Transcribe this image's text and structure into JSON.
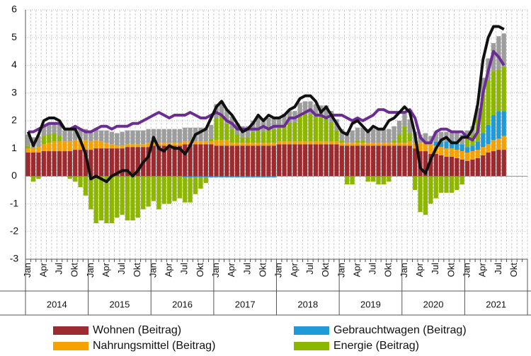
{
  "chart_data": {
    "type": "bar",
    "categories": [
      "Jan",
      null,
      null,
      "Apr",
      null,
      null,
      "Jul",
      null,
      null,
      "Okt",
      null,
      null,
      "Jan",
      null,
      null,
      "Apr",
      null,
      null,
      "Jul",
      null,
      null,
      "Okt",
      null,
      null,
      "Jan",
      null,
      null,
      "Apr",
      null,
      null,
      "Jul",
      null,
      null,
      "Okt",
      null,
      null,
      "Jan",
      null,
      null,
      "Apr",
      null,
      null,
      "Jul",
      null,
      null,
      "Okt",
      null,
      null,
      "Jan",
      null,
      null,
      "Apr",
      null,
      null,
      "Jul",
      null,
      null,
      "Okt",
      null,
      null,
      "Jan",
      null,
      null,
      "Apr",
      null,
      null,
      "Jul",
      null,
      null,
      "Okt",
      null,
      null,
      "Jan",
      null,
      null,
      "Apr",
      null,
      null,
      "Jul",
      null,
      null,
      "Okt",
      null,
      null,
      "Jan",
      null,
      null,
      "Apr",
      null,
      null,
      "Jul",
      null,
      null,
      "Okt",
      null,
      null
    ],
    "years": [
      "2014",
      "2015",
      "2016",
      "2017",
      "2018",
      "2019",
      "2020",
      "2021"
    ],
    "ylim": [
      -3,
      6
    ],
    "yticks": [
      -3,
      -2,
      -1,
      0,
      1,
      2,
      3,
      4,
      5,
      6
    ],
    "grid": true,
    "series": [
      {
        "name": "Wohnen (Beitrag)",
        "type": "bar",
        "color": "#9b2b2f",
        "values": [
          0.85,
          0.85,
          0.85,
          0.9,
          0.9,
          0.9,
          0.9,
          0.9,
          0.9,
          0.95,
          0.95,
          0.95,
          0.95,
          1.0,
          1.0,
          1.0,
          1.0,
          1.0,
          1.0,
          1.05,
          1.05,
          1.05,
          1.05,
          1.05,
          1.1,
          1.1,
          1.1,
          1.1,
          1.1,
          1.1,
          1.15,
          1.15,
          1.15,
          1.15,
          1.15,
          1.15,
          1.1,
          1.1,
          1.1,
          1.1,
          1.1,
          1.1,
          1.1,
          1.1,
          1.1,
          1.1,
          1.1,
          1.1,
          1.15,
          1.15,
          1.15,
          1.15,
          1.15,
          1.15,
          1.15,
          1.15,
          1.15,
          1.15,
          1.15,
          1.15,
          1.1,
          1.1,
          1.1,
          1.1,
          1.1,
          1.1,
          1.1,
          1.1,
          1.1,
          1.1,
          1.1,
          1.1,
          1.1,
          1.1,
          1.0,
          0.9,
          0.9,
          0.8,
          0.8,
          0.75,
          0.7,
          0.7,
          0.65,
          0.6,
          0.55,
          0.6,
          0.65,
          0.75,
          0.85,
          0.9,
          0.95,
          0.95,
          null,
          null,
          null,
          null
        ]
      },
      {
        "name": "Nahrungsmittel (Beitrag)",
        "type": "bar",
        "color": "#f5a200",
        "values": [
          0.15,
          0.15,
          0.2,
          0.25,
          0.3,
          0.35,
          0.35,
          0.35,
          0.35,
          0.35,
          0.35,
          0.35,
          0.3,
          0.3,
          0.25,
          0.2,
          0.15,
          0.1,
          0.1,
          0.1,
          0.1,
          0.1,
          0.1,
          0.15,
          0.1,
          0.1,
          0.1,
          0.1,
          0.1,
          0.1,
          0.1,
          0.1,
          0.1,
          0.1,
          0.1,
          0.1,
          0.2,
          0.2,
          0.2,
          0.1,
          0.1,
          0.1,
          0.1,
          0.1,
          0.1,
          0.1,
          0.1,
          0.1,
          0.1,
          0.1,
          0.1,
          0.1,
          0.1,
          0.1,
          0.1,
          0.1,
          0.1,
          0.1,
          0.1,
          0.1,
          0.1,
          0.1,
          0.1,
          0.1,
          0.1,
          0.1,
          0.1,
          0.1,
          0.1,
          0.1,
          0.1,
          0.1,
          0.1,
          0.15,
          0.2,
          0.3,
          0.35,
          0.35,
          0.3,
          0.3,
          0.3,
          0.3,
          0.3,
          0.3,
          0.3,
          0.3,
          0.3,
          0.3,
          0.3,
          0.4,
          0.4,
          0.5,
          null,
          null,
          null,
          null
        ]
      },
      {
        "name": "Gebrauchtwagen (Beitrag)",
        "type": "bar",
        "color": "#1f9ad6",
        "values": [
          0,
          0,
          0,
          0,
          0,
          0,
          0,
          0,
          0,
          0,
          0,
          0,
          0,
          0,
          0,
          0,
          0,
          0,
          0,
          0,
          0,
          0,
          0,
          0,
          0,
          0,
          0,
          0,
          0,
          0,
          -0.05,
          -0.05,
          -0.05,
          -0.05,
          -0.05,
          -0.05,
          -0.05,
          -0.05,
          -0.05,
          -0.05,
          -0.05,
          -0.05,
          -0.05,
          -0.05,
          -0.05,
          -0.05,
          -0.05,
          -0.05,
          0,
          0,
          0,
          0,
          0,
          0,
          0,
          0,
          0,
          0,
          0,
          0,
          0,
          0,
          0,
          0,
          0,
          0,
          0,
          0,
          0,
          0,
          0,
          0,
          0,
          0,
          0,
          0,
          0,
          0,
          0.15,
          0.2,
          0.25,
          0.3,
          0.3,
          0.25,
          0.2,
          0.2,
          0.3,
          0.5,
          0.7,
          0.9,
          1.0,
          0.9,
          null,
          null,
          null,
          null
        ]
      },
      {
        "name": "Energie (Beitrag)",
        "type": "bar",
        "color": "#8db600",
        "values": [
          0.1,
          -0.2,
          -0.1,
          0.3,
          0.3,
          0.3,
          0.2,
          0,
          -0.1,
          -0.2,
          -0.4,
          -0.7,
          -1.2,
          -1.7,
          -1.6,
          -1.7,
          -1.7,
          -1.5,
          -1.4,
          -1.6,
          -1.6,
          -1.5,
          -1.2,
          -1.1,
          -0.9,
          -1.2,
          -1.0,
          -1.0,
          -0.9,
          -0.8,
          -0.9,
          -0.9,
          -0.6,
          -0.4,
          -0.2,
          0.1,
          0.8,
          0.9,
          0.6,
          0.5,
          0.3,
          0.2,
          0.2,
          0.4,
          0.5,
          0.4,
          0.5,
          0.5,
          0.5,
          0.6,
          0.7,
          0.7,
          1.0,
          1.0,
          1.0,
          0.9,
          0.9,
          0.9,
          0.7,
          0.4,
          0.1,
          -0.3,
          -0.3,
          0.1,
          0.1,
          -0.2,
          -0.2,
          -0.3,
          -0.3,
          -0.2,
          0.1,
          0.3,
          0.6,
          0.3,
          -0.5,
          -1.3,
          -1.4,
          -1.0,
          -0.8,
          -0.6,
          -0.6,
          -0.6,
          -0.5,
          -0.3,
          0.3,
          0.4,
          0.8,
          1.4,
          1.6,
          1.6,
          1.5,
          1.6,
          null,
          null,
          null,
          null
        ]
      },
      {
        "type": "bar",
        "color": "#9d9d9d",
        "values": [
          0.4,
          0.4,
          0.4,
          0.4,
          0.4,
          0.4,
          0.4,
          0.4,
          0.4,
          0.4,
          0.4,
          0.4,
          0.4,
          0.4,
          0.4,
          0.45,
          0.45,
          0.45,
          0.5,
          0.5,
          0.5,
          0.5,
          0.5,
          0.5,
          0.5,
          0.5,
          0.5,
          0.5,
          0.5,
          0.5,
          0.5,
          0.5,
          0.5,
          0.5,
          0.5,
          0.5,
          0.5,
          0.5,
          0.5,
          0.45,
          0.4,
          0.4,
          0.4,
          0.4,
          0.4,
          0.4,
          0.4,
          0.4,
          0.4,
          0.4,
          0.4,
          0.4,
          0.4,
          0.45,
          0.45,
          0.45,
          0.4,
          0.4,
          0.4,
          0.4,
          0.4,
          0.4,
          0.45,
          0.45,
          0.45,
          0.5,
          0.5,
          0.5,
          0.5,
          0.5,
          0.5,
          0.5,
          0.5,
          0.5,
          0.4,
          0.3,
          0.3,
          0.3,
          0.35,
          0.35,
          0.35,
          0.35,
          0.35,
          0.35,
          0.3,
          0.3,
          0.4,
          0.6,
          0.8,
          1.0,
          1.2,
          1.2,
          null,
          null,
          null,
          null
        ]
      },
      {
        "type": "line",
        "color": "#6b2d91",
        "values": [
          1.6,
          1.6,
          1.7,
          1.8,
          1.9,
          1.9,
          1.9,
          1.7,
          1.7,
          1.8,
          1.7,
          1.6,
          1.6,
          1.7,
          1.8,
          1.8,
          1.7,
          1.8,
          1.8,
          1.8,
          1.9,
          1.9,
          2.0,
          2.1,
          2.2,
          2.3,
          2.2,
          2.1,
          2.2,
          2.2,
          2.2,
          2.3,
          2.2,
          2.1,
          2.1,
          2.2,
          2.3,
          2.2,
          2.0,
          1.9,
          1.7,
          1.7,
          1.7,
          1.7,
          1.7,
          1.8,
          1.7,
          1.8,
          1.8,
          1.8,
          2.1,
          2.1,
          2.2,
          2.3,
          2.4,
          2.2,
          2.2,
          2.1,
          2.2,
          2.2,
          2.2,
          2.1,
          2.0,
          2.1,
          2.0,
          2.1,
          2.2,
          2.4,
          2.4,
          2.3,
          2.3,
          2.3,
          2.3,
          2.4,
          2.1,
          1.4,
          1.2,
          1.2,
          1.6,
          1.7,
          1.7,
          1.6,
          1.6,
          1.6,
          1.4,
          1.3,
          1.6,
          3.0,
          3.8,
          4.5,
          4.3,
          4.0,
          null,
          null,
          null,
          null
        ]
      },
      {
        "type": "line",
        "color": "#111111",
        "values": [
          1.6,
          1.1,
          1.5,
          2.0,
          2.1,
          2.1,
          2.0,
          1.7,
          1.7,
          1.7,
          1.3,
          0.8,
          -0.1,
          0.0,
          -0.1,
          -0.2,
          0.0,
          0.1,
          0.2,
          0.2,
          0.0,
          0.2,
          0.5,
          0.7,
          1.4,
          1.0,
          0.9,
          1.1,
          1.0,
          1.0,
          0.8,
          1.1,
          1.5,
          1.6,
          1.7,
          2.1,
          2.5,
          2.7,
          2.4,
          2.2,
          1.9,
          1.6,
          1.7,
          1.9,
          2.2,
          2.0,
          2.2,
          2.1,
          2.1,
          2.2,
          2.4,
          2.5,
          2.8,
          2.9,
          2.9,
          2.7,
          2.3,
          2.5,
          2.2,
          1.9,
          1.6,
          1.5,
          1.9,
          2.0,
          1.8,
          1.6,
          1.8,
          1.7,
          1.7,
          2.0,
          2.1,
          2.3,
          2.5,
          2.3,
          1.5,
          0.3,
          0.1,
          0.6,
          1.0,
          1.3,
          1.4,
          1.2,
          1.2,
          1.4,
          1.4,
          1.7,
          2.6,
          4.2,
          5.0,
          5.4,
          5.4,
          5.3,
          null,
          null,
          null,
          null
        ]
      }
    ]
  }
}
